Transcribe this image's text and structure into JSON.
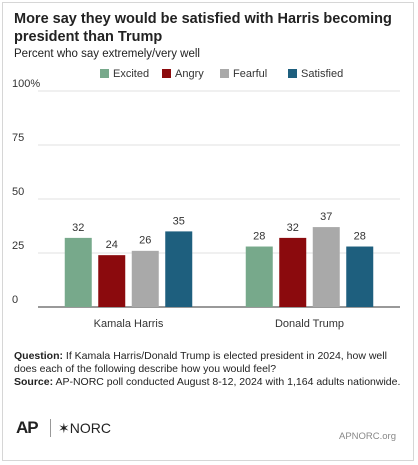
{
  "chart_data": {
    "type": "grouped_bar",
    "title": "More say they would be satisfied with Harris becoming president than Trump",
    "subtitle": "Percent who say extremely/very well",
    "categories": [
      "Kamala Harris",
      "Donald Trump"
    ],
    "series": [
      {
        "name": "Excited",
        "color": "#77a98b",
        "values": [
          32,
          28
        ]
      },
      {
        "name": "Angry",
        "color": "#8b0a0d",
        "values": [
          24,
          32
        ]
      },
      {
        "name": "Fearful",
        "color": "#a9a9a9",
        "values": [
          26,
          37
        ]
      },
      {
        "name": "Satisfied",
        "color": "#1e5f7e",
        "values": [
          35,
          28
        ]
      }
    ],
    "ylim": [
      0,
      100
    ],
    "yticks": [
      0,
      25,
      50,
      75,
      {
        "value": 100,
        "label": "100%"
      }
    ],
    "grid": true,
    "legend": "top",
    "question_label": "Question:",
    "question": "If Kamala Harris/Donald Trump is elected president in 2024, how well does each of the following describe how you would feel?",
    "source_label": "Source:",
    "source": "AP-NORC poll conducted August 8-12, 2024 with 1,164 adults nationwide.",
    "logos": [
      "AP",
      "✶NORC"
    ],
    "site": "APNORC.org"
  }
}
